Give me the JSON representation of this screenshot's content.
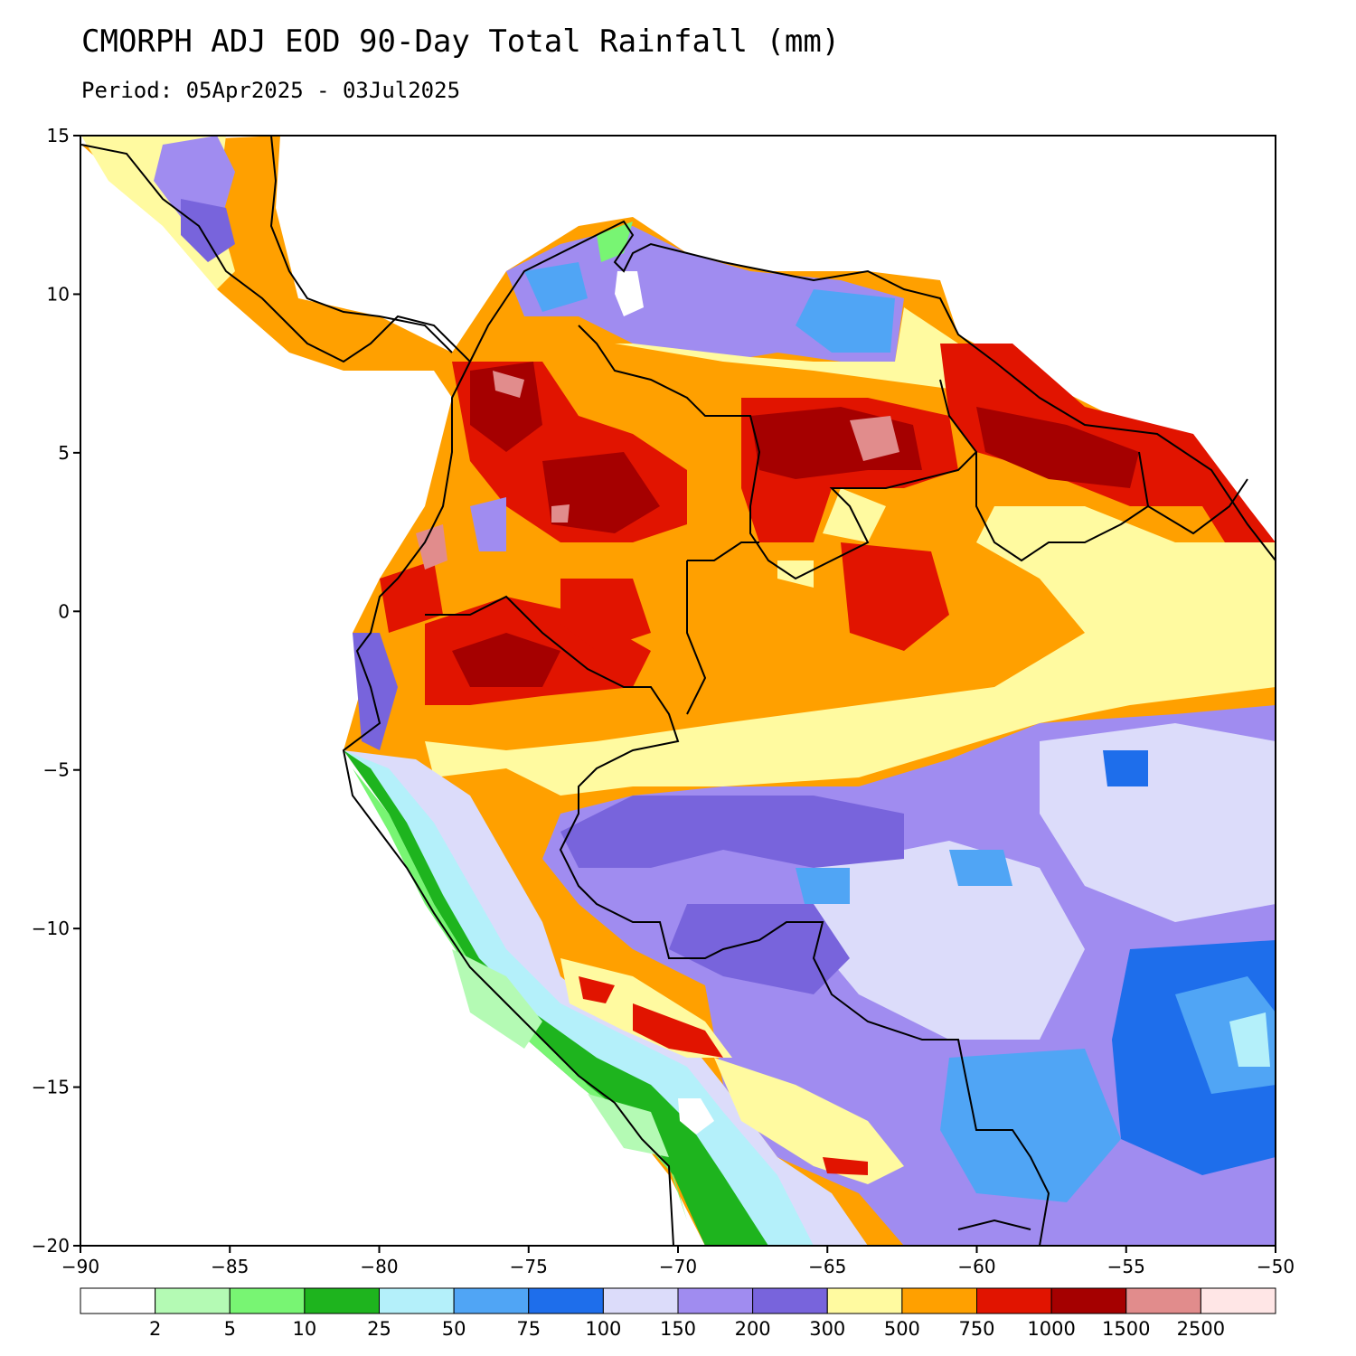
{
  "title": "CMORPH ADJ EOD 90-Day Total Rainfall (mm)",
  "subtitle": "Period: 05Apr2025 - 03Jul2025",
  "map": {
    "lon_range": [
      -90,
      -50
    ],
    "lat_range": [
      -20,
      15
    ],
    "lon_ticks": [
      -90,
      -85,
      -80,
      -75,
      -70,
      -65,
      -60,
      -55,
      -50
    ],
    "lat_ticks": [
      15,
      10,
      5,
      0,
      -5,
      -10,
      -15,
      -20
    ],
    "lon_tick_labels": [
      "−90",
      "−85",
      "−80",
      "−75",
      "−70",
      "−65",
      "−60",
      "−55",
      "−50"
    ],
    "lat_tick_labels": [
      "15",
      "10",
      "5",
      "0",
      "−5",
      "−10",
      "−15",
      "−20"
    ]
  },
  "colorbar": {
    "colors": [
      "#ffffff",
      "#b4fab4",
      "#78f573",
      "#1eb41e",
      "#b4f0fa",
      "#50a5f5",
      "#1e6eeb",
      "#dcdcfa",
      "#a08cf0",
      "#7864dc",
      "#fffaa0",
      "#ffa000",
      "#e11400",
      "#a50000",
      "#e18c8c",
      "#ffe6e6"
    ],
    "labels": [
      "2",
      "5",
      "10",
      "25",
      "50",
      "75",
      "100",
      "150",
      "200",
      "300",
      "500",
      "750",
      "1000",
      "1500",
      "2500"
    ]
  }
}
